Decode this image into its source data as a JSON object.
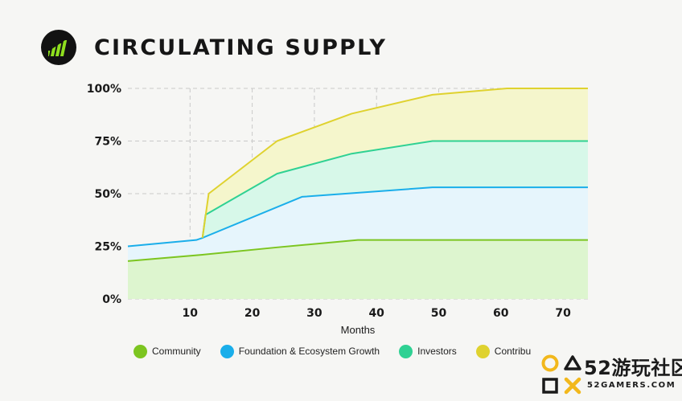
{
  "title": "CIRCULATING SUPPLY",
  "logo_icon": "bar-chart-trend-icon",
  "chart_data": {
    "type": "area",
    "stacked": true,
    "xlabel": "Months",
    "ylabel": "",
    "xlim": [
      0,
      74
    ],
    "ylim": [
      0,
      100
    ],
    "xticks": [
      10,
      20,
      30,
      40,
      50,
      60,
      70
    ],
    "yticks": [
      0,
      25,
      50,
      75,
      100
    ],
    "ytick_labels": [
      "0%",
      "25%",
      "50%",
      "75%",
      "100%"
    ],
    "grid": true,
    "legend_position": "bottom",
    "series": [
      {
        "name": "Community",
        "color": "#7cc520",
        "fill": "#ddf5cf",
        "points": [
          [
            0,
            18
          ],
          [
            12,
            21
          ],
          [
            24,
            24.5
          ],
          [
            37,
            28
          ],
          [
            74,
            28
          ]
        ]
      },
      {
        "name": "Foundation & Ecosystem Growth",
        "color": "#1aaeea",
        "fill": "#e6f5fc",
        "points": [
          [
            0,
            25
          ],
          [
            11,
            28
          ],
          [
            12,
            29
          ],
          [
            28,
            48.5
          ],
          [
            49,
            53
          ],
          [
            74,
            53
          ]
        ]
      },
      {
        "name": "Investors",
        "color": "#2fd193",
        "fill": "#d7f8e9",
        "points": [
          [
            12,
            29
          ],
          [
            12.5,
            40
          ],
          [
            24,
            59.5
          ],
          [
            36,
            69
          ],
          [
            49,
            75
          ],
          [
            74,
            75
          ]
        ]
      },
      {
        "name": "Contributors",
        "color": "#dfd22f",
        "fill": "#f5f6cc",
        "points": [
          [
            12,
            29
          ],
          [
            13,
            50
          ],
          [
            24,
            75
          ],
          [
            36,
            88
          ],
          [
            49,
            97
          ],
          [
            61,
            100
          ],
          [
            74,
            100
          ]
        ]
      }
    ]
  },
  "legend": [
    {
      "label": "Community",
      "color": "#7cc520"
    },
    {
      "label": "Foundation & Ecosystem Growth",
      "color": "#1aaeea"
    },
    {
      "label": "Investors",
      "color": "#2fd193"
    },
    {
      "label": "Contributors",
      "color": "#dfd22f"
    }
  ],
  "watermark": {
    "text": "52游玩社区",
    "subtext": "52GAMERS.COM",
    "colors": {
      "circle": "#f2b81c",
      "triangle": "#1a1a1a",
      "square": "#1a1a1a",
      "cross": "#f2b81c"
    }
  }
}
